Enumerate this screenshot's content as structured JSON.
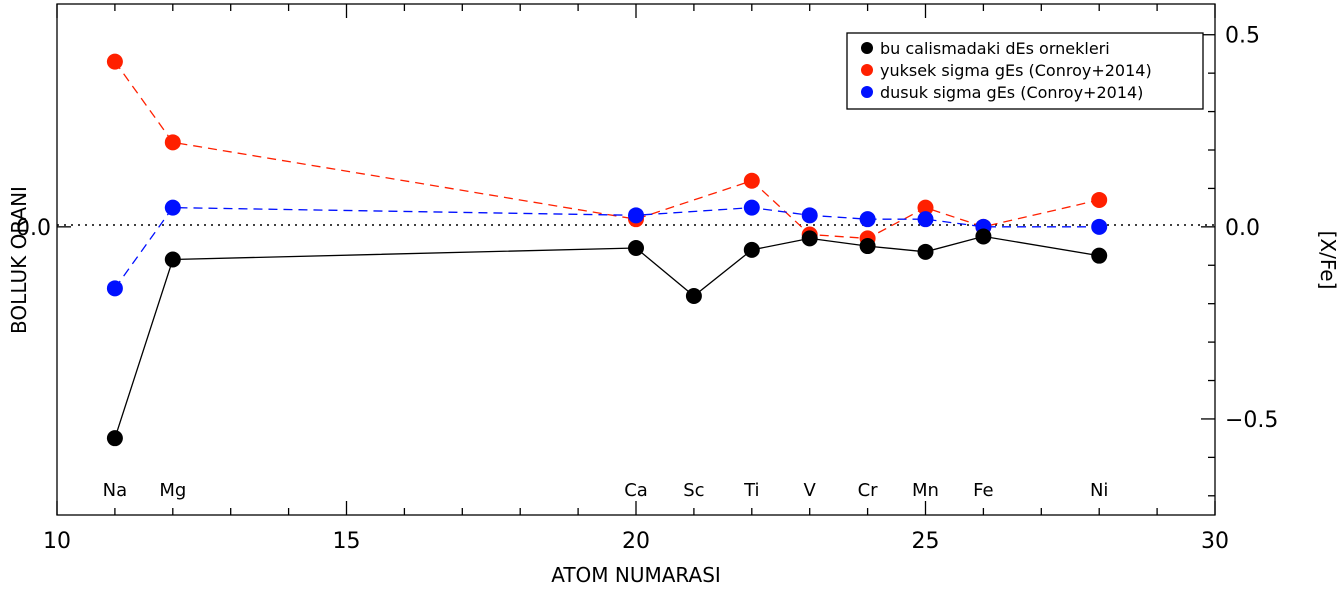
{
  "chart_data": {
    "type": "line",
    "xlabel": "ATOM NUMARASI",
    "ylabel_left": "BOLLUK ORANI",
    "ylabel_right": "[X/Fe]",
    "xlim": [
      10,
      30
    ],
    "ylim": [
      -0.75,
      0.58
    ],
    "x_ticks": [
      10,
      15,
      20,
      25,
      30
    ],
    "x_tick_labels": [
      "10",
      "15",
      "20",
      "25",
      "30"
    ],
    "left_y_ticks": [
      0.0
    ],
    "left_y_tick_labels": [
      "0.0"
    ],
    "right_y_ticks": [
      0.5,
      0.0,
      -0.5
    ],
    "right_y_tick_labels": [
      "0.5",
      "0.0",
      "−0.5"
    ],
    "zero_line": "dotted",
    "legend_position": "top-right",
    "element_labels": [
      {
        "x": 11,
        "label": "Na"
      },
      {
        "x": 12,
        "label": "Mg"
      },
      {
        "x": 20,
        "label": "Ca"
      },
      {
        "x": 21,
        "label": "Sc"
      },
      {
        "x": 22,
        "label": "Ti"
      },
      {
        "x": 23,
        "label": "V"
      },
      {
        "x": 24,
        "label": "Cr"
      },
      {
        "x": 25,
        "label": "Mn"
      },
      {
        "x": 26,
        "label": "Fe"
      },
      {
        "x": 28,
        "label": "Ni"
      }
    ],
    "series": [
      {
        "name": "yuksek sigma gEs (Conroy+2014)",
        "color": "#ff2000",
        "line_style": "dashed",
        "x": [
          11,
          12,
          20,
          22,
          23,
          24,
          25,
          26,
          28
        ],
        "y": [
          0.43,
          0.22,
          0.02,
          0.12,
          -0.02,
          -0.03,
          0.05,
          0.0,
          0.07
        ]
      },
      {
        "name": "dusuk sigma gEs (Conroy+2014)",
        "color": "#0010ff",
        "line_style": "dashed",
        "x": [
          11,
          12,
          20,
          22,
          23,
          24,
          25,
          26,
          28
        ],
        "y": [
          -0.16,
          0.05,
          0.03,
          0.05,
          0.03,
          0.02,
          0.02,
          0.0,
          0.0
        ]
      },
      {
        "name": "bu calismadaki dEs ornekleri",
        "color": "#000000",
        "line_style": "solid",
        "x": [
          11,
          12,
          20,
          21,
          22,
          23,
          24,
          25,
          26,
          28
        ],
        "y": [
          -0.55,
          -0.085,
          -0.055,
          -0.18,
          -0.06,
          -0.03,
          -0.05,
          -0.065,
          -0.025,
          -0.075
        ]
      }
    ],
    "legend_order": [
      2,
      0,
      1
    ]
  }
}
